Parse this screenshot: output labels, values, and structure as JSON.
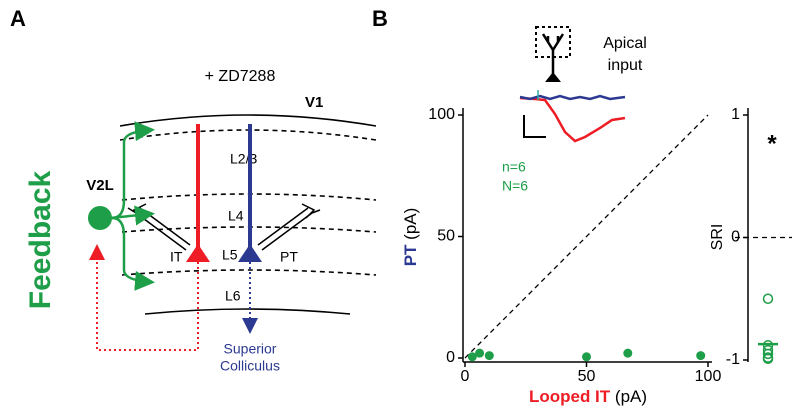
{
  "panel_a": {
    "label": "A",
    "title": "Feedback",
    "drug": "+ ZD7288",
    "area": "V1",
    "source": "V2L",
    "layers": [
      "L2/3",
      "L4",
      "L5",
      "L6"
    ],
    "cell_it": "IT",
    "cell_pt": "PT",
    "target": [
      "Superior",
      "Colliculus"
    ]
  },
  "panel_b": {
    "label": "B",
    "inset_label": [
      "Apical",
      "input"
    ]
  },
  "chart_data": [
    {
      "type": "scatter",
      "xlabel": {
        "name": "Looped IT",
        "unit": "(pA)"
      },
      "ylabel": {
        "name": "PT",
        "unit": "(pA)"
      },
      "xlim": [
        0,
        100
      ],
      "ylim": [
        0,
        100
      ],
      "xticks": [
        0,
        50,
        100
      ],
      "yticks": [
        0,
        50,
        100
      ],
      "x": [
        3,
        6,
        10,
        50,
        67,
        97
      ],
      "y": [
        0.5,
        2,
        1,
        0.5,
        2,
        1
      ],
      "color": "#1e9e48",
      "annotations": [
        "n=6",
        "N=6"
      ]
    },
    {
      "type": "strip",
      "ylabel": "SRI",
      "ylim": [
        -1,
        1
      ],
      "yticks": [
        -1,
        0,
        1
      ],
      "values": [
        -0.5,
        -0.88,
        -0.92,
        -0.95,
        -0.98,
        -0.99
      ],
      "mean": -0.87,
      "annotation": "*",
      "color": "#1e9e48"
    }
  ]
}
